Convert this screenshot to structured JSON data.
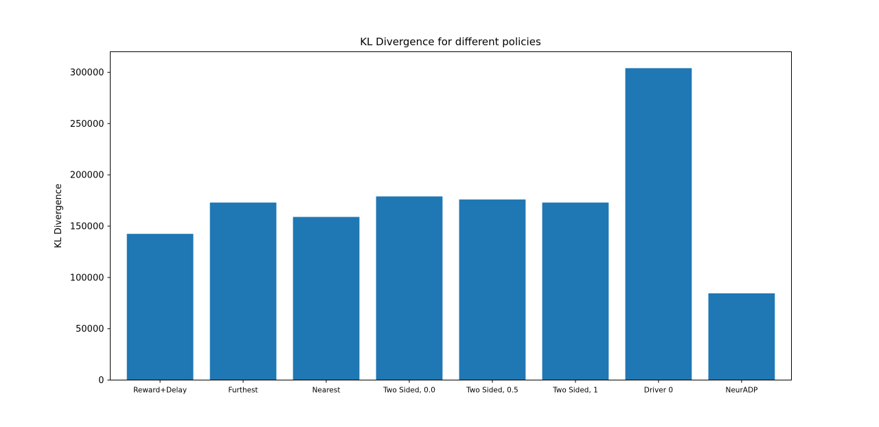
{
  "chart_data": {
    "type": "bar",
    "title": "KL Divergence for different policies",
    "xlabel": "",
    "ylabel": "KL Divergence",
    "categories": [
      "Reward+Delay",
      "Furthest",
      "Nearest",
      "Two Sided, 0.0",
      "Two Sided, 0.5",
      "Two Sided, 1",
      "Driver 0",
      "NeurADP"
    ],
    "values": [
      142500,
      173000,
      159000,
      179000,
      176000,
      173000,
      304000,
      84500
    ],
    "ylim": [
      0,
      320000
    ],
    "yticks": [
      0,
      50000,
      100000,
      150000,
      200000,
      250000,
      300000
    ],
    "ytick_labels": [
      "0",
      "50000",
      "100000",
      "150000",
      "200000",
      "250000",
      "300000"
    ],
    "bar_color": "#1f77b4",
    "grid": false,
    "legend": "none"
  }
}
